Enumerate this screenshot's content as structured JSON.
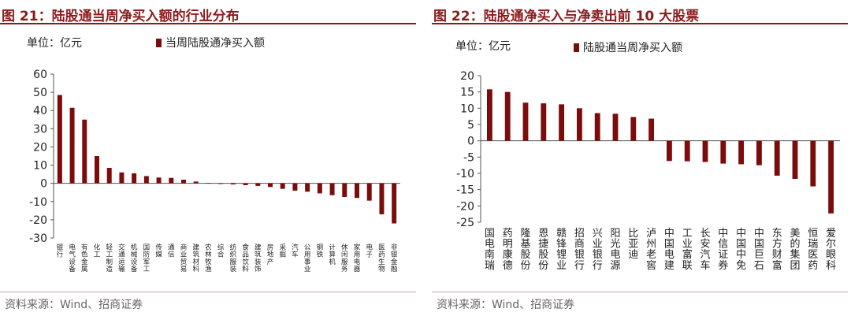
{
  "colors": {
    "accent": "#8b1a1a",
    "bar": "#7b0c0c"
  },
  "left": {
    "title": "图 21：陆股通当周净买入额的行业分布",
    "unit": "单位：亿元",
    "legend": "当周陆股通净买入额",
    "source": "资料来源：Wind、招商证券"
  },
  "right": {
    "title": "图 22：陆股通净买入与净卖出前 10 大股票",
    "unit": "单位：亿元",
    "legend": "陆股通当周净买入额",
    "source": "资料来源：Wind、招商证券"
  },
  "chart_data": [
    {
      "type": "bar",
      "title": "",
      "ylim": [
        -30,
        60
      ],
      "yticks": [
        -30,
        -20,
        -10,
        0,
        10,
        20,
        30,
        40,
        50,
        60
      ],
      "grid": false,
      "legend_position": "top",
      "categories": [
        "银行",
        "电气设备",
        "有色金属",
        "化工",
        "轻工制造",
        "交通运输",
        "机械设备",
        "国防军工",
        "传媒",
        "通信",
        "商业贸易",
        "建筑材料",
        "农林牧渔",
        "综合",
        "纺织服装",
        "食品饮料",
        "建筑装饰",
        "房地产",
        "采掘",
        "汽车",
        "公用事业",
        "钢铁",
        "计算机",
        "休闲服务",
        "家用电器",
        "电子",
        "医药生物",
        "非银金融"
      ],
      "series": [
        {
          "name": "当周陆股通净买入额",
          "values": [
            48.5,
            41.5,
            35,
            15,
            8.5,
            6,
            5.5,
            4,
            3.2,
            3,
            2,
            1,
            0.2,
            -0.3,
            -0.6,
            -1,
            -1.4,
            -2,
            -3,
            -4,
            -4.6,
            -5.5,
            -6.5,
            -7.5,
            -8,
            -9.5,
            -17,
            -22
          ]
        }
      ]
    },
    {
      "type": "bar",
      "title": "",
      "ylim": [
        -25,
        20
      ],
      "yticks": [
        -25,
        -20,
        -15,
        -10,
        -5,
        0,
        5,
        10,
        15,
        20
      ],
      "grid": false,
      "legend_position": "top",
      "categories": [
        "国电南瑞",
        "药明康德",
        "隆基股份",
        "恩捷股份",
        "赣锋锂业",
        "招商银行",
        "兴业银行",
        "阳光电源",
        "比亚迪",
        "泸州老窖",
        "中国电建",
        "工业富联",
        "长安汽车",
        "中信证券",
        "中国中免",
        "中国巨石",
        "东方财富",
        "美的集团",
        "恒瑞医药",
        "爱尔眼科"
      ],
      "series": [
        {
          "name": "陆股通当周净买入额",
          "values": [
            15.8,
            15,
            11.7,
            11.5,
            11.2,
            10,
            8.5,
            8.3,
            7.3,
            6.8,
            -6.2,
            -6.3,
            -6.5,
            -7,
            -7.2,
            -7.5,
            -10.7,
            -11.7,
            -14,
            -22.3
          ]
        }
      ]
    }
  ]
}
